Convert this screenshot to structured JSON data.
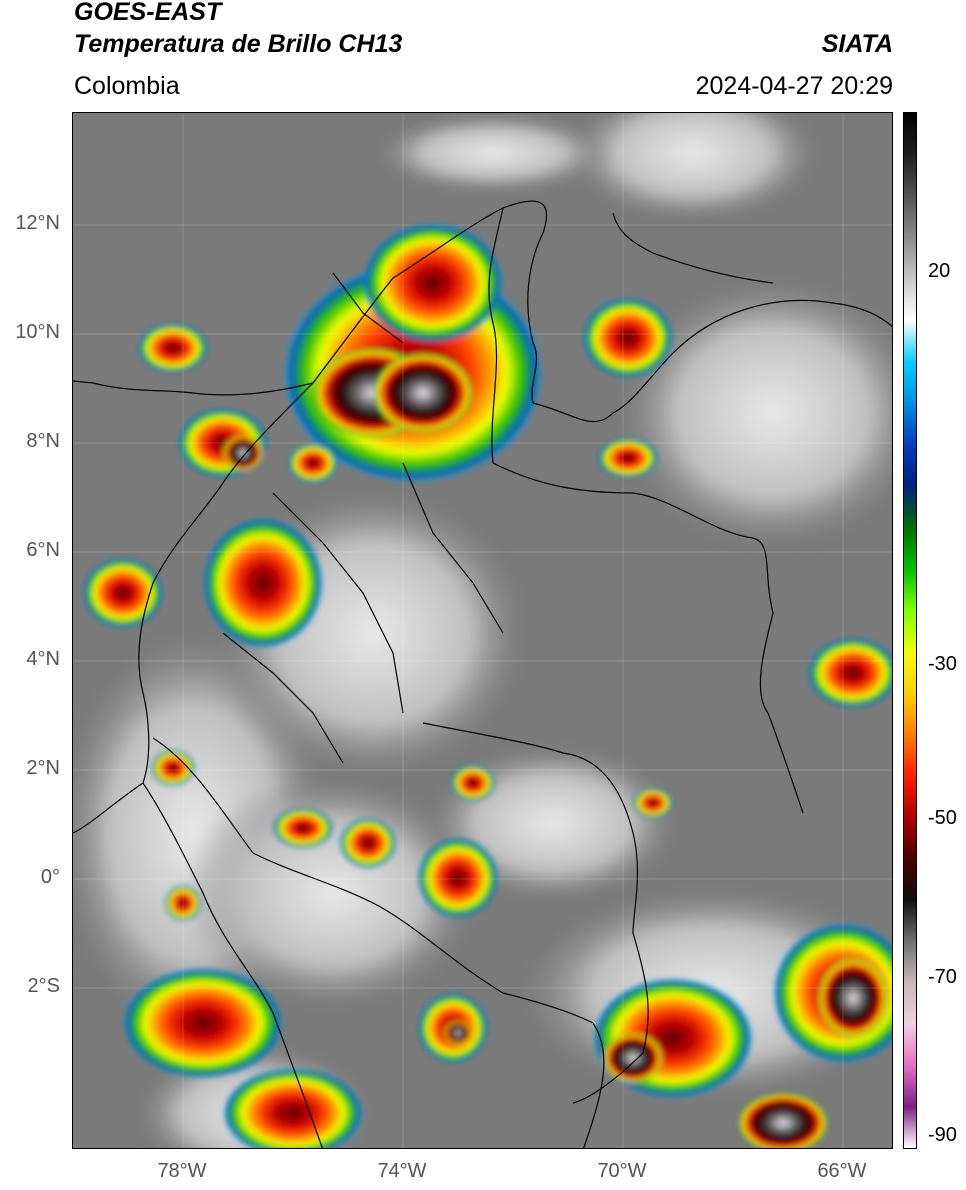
{
  "header": {
    "title_line1": "GOES-EAST",
    "title_line2": "Temperatura de Brillo CH13",
    "region": "Colombia",
    "agency": "SIATA",
    "datetime": "2024-04-27 20:29"
  },
  "lat_ticks": [
    "12°N",
    "10°N",
    "8°N",
    "6°N",
    "4°N",
    "2°N",
    "0°",
    "2°S"
  ],
  "lon_ticks": [
    "78°W",
    "74°W",
    "70°W",
    "66°W"
  ],
  "colorbar": {
    "ticks": [
      "20",
      "-30",
      "-50",
      "-70",
      "-90"
    ],
    "stops": [
      "#ffffff",
      "#7e1f84",
      "#e66fc4",
      "#f0d0e0",
      "#c8b8b8",
      "#707070",
      "#101010",
      "#4a0000",
      "#b00000",
      "#ff2000",
      "#ff8000",
      "#ffd000",
      "#f0ff00",
      "#80ff00",
      "#00c000",
      "#007000",
      "#002080",
      "#0040c0",
      "#0090e0",
      "#00d0ff",
      "#ffffff",
      "#c8c8c8",
      "#8a8a8a",
      "#555555",
      "#202020",
      "#000000"
    ]
  },
  "map_colors": {
    "land": "#7a7a7a",
    "cloud_white": "#dcdcdc",
    "storm_core": "#2a2a2a"
  }
}
